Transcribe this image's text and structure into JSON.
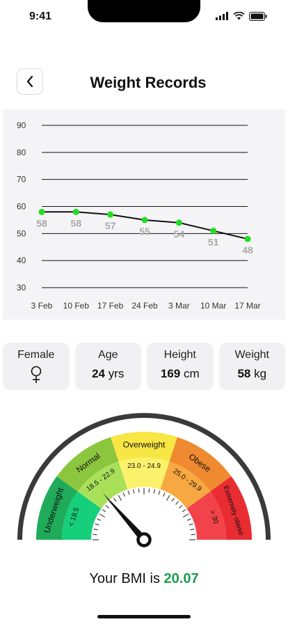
{
  "status_bar": {
    "time": "9:41"
  },
  "header": {
    "title": "Weight Records"
  },
  "chart_data": {
    "type": "line",
    "categories": [
      "3 Feb",
      "10 Feb",
      "17 Feb",
      "24 Feb",
      "3 Mar",
      "10 Mar",
      "17 Mar"
    ],
    "values": [
      58,
      58,
      57,
      55,
      54,
      51,
      48
    ],
    "data_labels": [
      "58",
      "58",
      "57",
      "55",
      "54",
      "51",
      "48"
    ],
    "y_ticks": [
      "90",
      "80",
      "70",
      "60",
      "50",
      "40",
      "30"
    ],
    "ylim": [
      30,
      90
    ],
    "grid": true,
    "line_color": "#111111",
    "point_color": "#22dd22",
    "title": "",
    "xlabel": "",
    "ylabel": ""
  },
  "stats": [
    {
      "label": "Female",
      "icon": "female-icon"
    },
    {
      "label": "Age",
      "value": "24",
      "unit": "yrs"
    },
    {
      "label": "Height",
      "value": "169",
      "unit": "cm"
    },
    {
      "label": "Weight",
      "value": "58",
      "unit": "kg"
    }
  ],
  "gauge": {
    "segments": [
      {
        "name": "Underweight",
        "range": "< 18.5",
        "outer_color": "#1fab5a",
        "inner_color": "#16cf7a"
      },
      {
        "name": "Normal",
        "range": "18.5 - 22.9",
        "outer_color": "#8cc63e",
        "inner_color": "#a8e05a"
      },
      {
        "name": "Overweight",
        "range": "23.0 - 24.9",
        "outer_color": "#f7e644",
        "inner_color": "#fbf26c"
      },
      {
        "name": "Obese",
        "range": "25.0 - 29.9",
        "outer_color": "#ef8a30",
        "inner_color": "#f7a840"
      },
      {
        "name": "Extremely obese",
        "range": "> 30",
        "outer_color": "#e82c32",
        "inner_color": "#f2424a"
      }
    ],
    "bmi_value": 20.07
  },
  "bmi": {
    "prefix": "Your BMI is",
    "value": "20.07"
  }
}
